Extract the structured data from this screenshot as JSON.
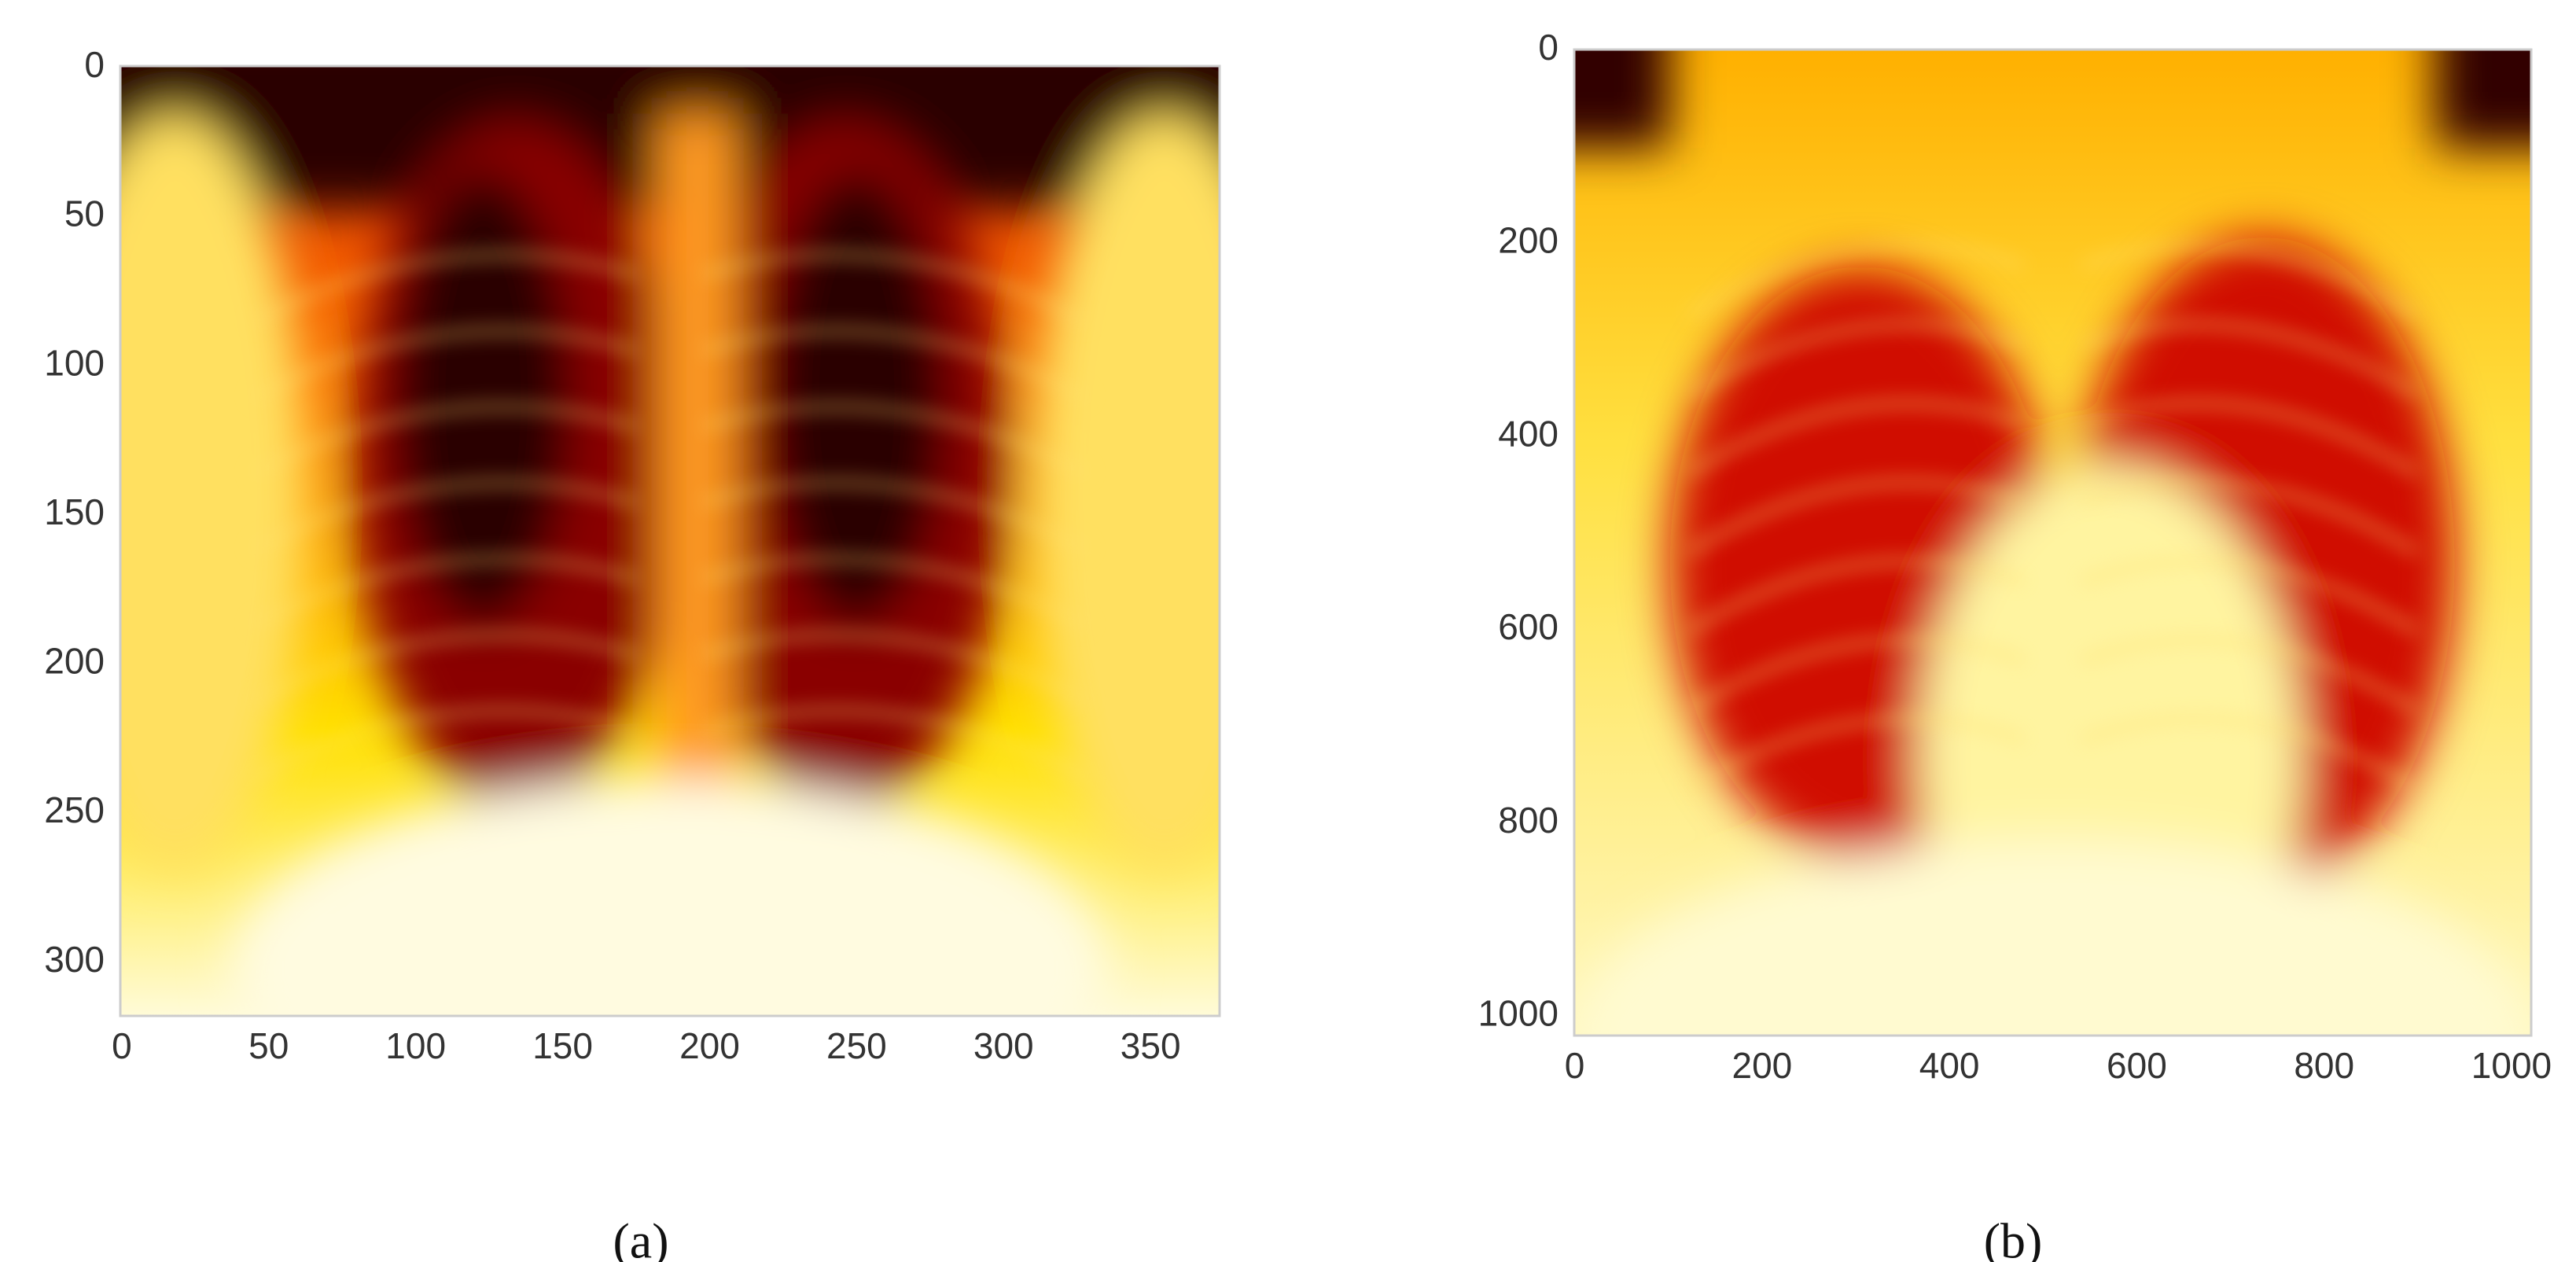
{
  "chart_data": [
    {
      "type": "image",
      "caption": "(a)",
      "xlim": [
        -0.5,
        373.5
      ],
      "ylim": [
        318,
        -0.5
      ],
      "xticks": [
        0,
        50,
        100,
        150,
        200,
        250,
        300,
        350
      ],
      "yticks": [
        0,
        50,
        100,
        150,
        200,
        250,
        300
      ]
    },
    {
      "type": "image",
      "caption": "(b)",
      "xlim": [
        -0.5,
        1021
      ],
      "ylim": [
        1020,
        -0.5
      ],
      "xticks": [
        0,
        200,
        400,
        600,
        800,
        1000
      ],
      "yticks": [
        0,
        200,
        400,
        600,
        800,
        1000
      ]
    }
  ]
}
